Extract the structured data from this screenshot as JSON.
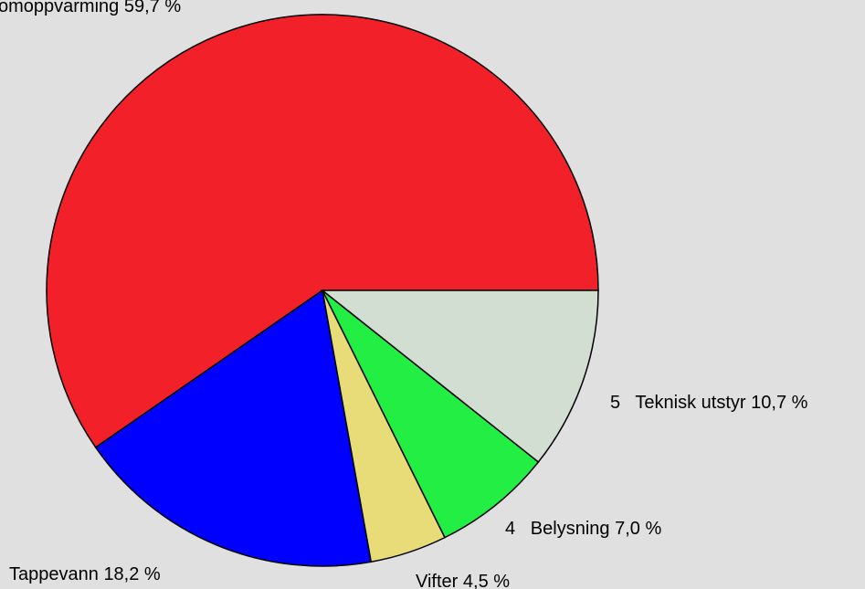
{
  "chart_data": {
    "type": "pie",
    "categories": [
      "omoppvarming",
      "Tappevann",
      "Vifter",
      "4   Belysning",
      "5   Teknisk utstyr"
    ],
    "values": [
      59.7,
      18.2,
      4.5,
      7.0,
      10.7
    ],
    "value_labels": [
      "59,7 %",
      "18,2 %",
      "4,5 %",
      "7,0 %",
      "10,7 %"
    ],
    "colors": [
      "#f22129",
      "#0000ff",
      "#e8dc78",
      "#22ee44",
      "#d3ded3"
    ]
  }
}
